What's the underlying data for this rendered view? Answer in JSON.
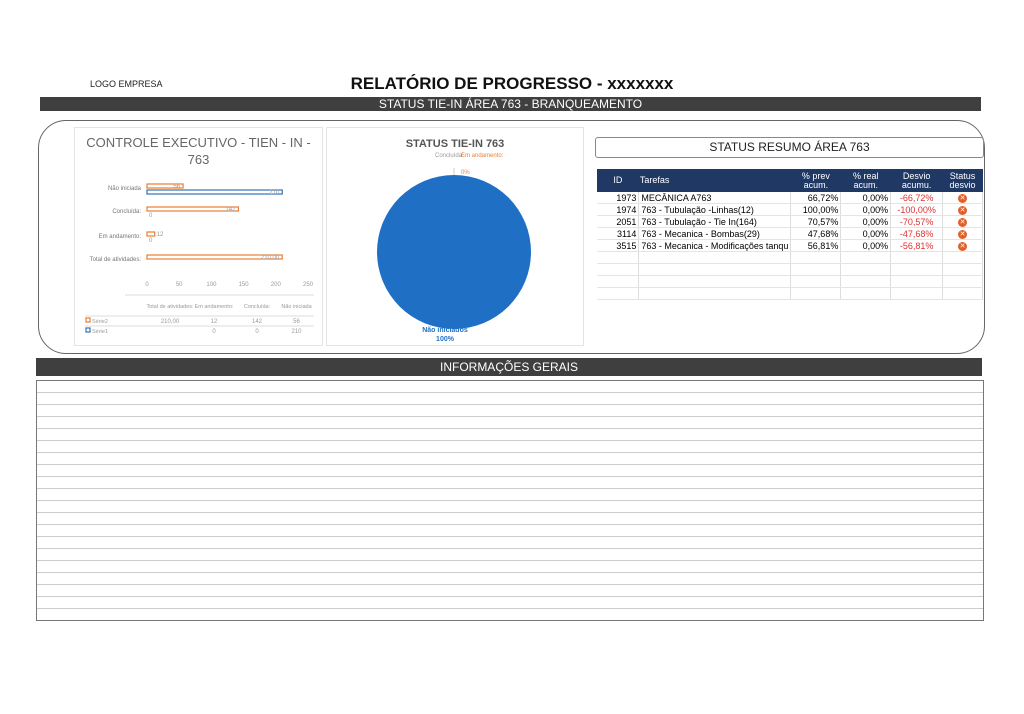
{
  "header": {
    "logo": "LOGO EMPRESA",
    "title": "RELATÓRIO DE PROGRESSO - xxxxxxx",
    "subtitle": "STATUS TIE-IN ÁREA 763 - BRANQUEAMENTO"
  },
  "chart_data": [
    {
      "type": "bar",
      "title": "CONTROLE EXECUTIVO - TIEN - IN - 763",
      "categories": [
        "Total de atividades:",
        "Em andamento:",
        "Concluída:",
        "Não iniciada"
      ],
      "series": [
        {
          "name": "Série2",
          "color": "#ed7d31",
          "values": [
            210.0,
            12,
            142,
            56
          ],
          "labels": [
            "210,00",
            "12",
            "142",
            "56"
          ]
        },
        {
          "name": "Série1",
          "color": "#2e75b6",
          "values": [
            null,
            0,
            0,
            210
          ],
          "labels": [
            "",
            "0",
            "0",
            "210"
          ]
        }
      ],
      "xlim": [
        0,
        250
      ],
      "xticks": [
        "0",
        "50",
        "100",
        "150",
        "200",
        "250"
      ]
    },
    {
      "type": "pie",
      "title": "STATUS TIE-IN 763",
      "slices": [
        {
          "label": "Concluída:",
          "value": 0,
          "pct": "0%"
        },
        {
          "label": "Em andamento:",
          "value": 0,
          "pct": "0%"
        },
        {
          "label": "Não iniciados",
          "value": 100,
          "pct": "100%",
          "color": "#1f6fc5"
        }
      ]
    }
  ],
  "resumo": {
    "title": "STATUS RESUMO ÁREA 763",
    "headers": [
      "ID",
      "Tarefas",
      "% prev acum.",
      "% real acum.",
      "Desvio acumu.",
      "Status desvio"
    ],
    "rows": [
      {
        "id": "1973",
        "task": "MECÂNICA A763",
        "prev": "66,72%",
        "real": "0,00%",
        "desvio": "-66,72%"
      },
      {
        "id": "1974",
        "task": "763 - Tubulação -Linhas(12)",
        "prev": "100,00%",
        "real": "0,00%",
        "desvio": "-100,00%"
      },
      {
        "id": "2051",
        "task": "763 - Tubulação - Tie In(164)",
        "prev": "70,57%",
        "real": "0,00%",
        "desvio": "-70,57%"
      },
      {
        "id": "3114",
        "task": "763 - Mecanica - Bombas(29)",
        "prev": "47,68%",
        "real": "0,00%",
        "desvio": "-47,68%"
      },
      {
        "id": "3515",
        "task": "763 - Mecanica - Modificações tanqu",
        "prev": "56,81%",
        "real": "0,00%",
        "desvio": "-56,81%"
      }
    ]
  },
  "info": {
    "title": "INFORMAÇÕES GERAIS"
  }
}
